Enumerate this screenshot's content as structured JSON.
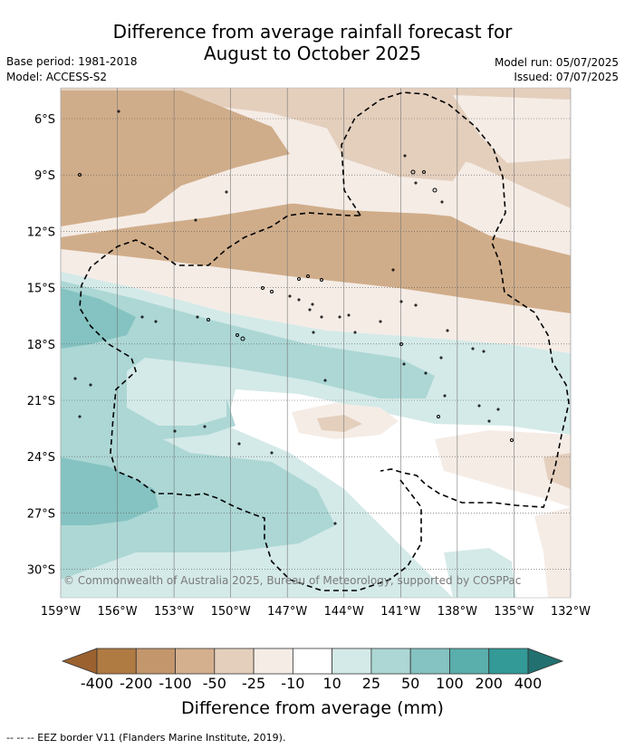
{
  "title": {
    "line1": "Difference from average rainfall forecast for",
    "line2": "August to October 2025"
  },
  "meta": {
    "base_period": "Base period: 1981-2018",
    "model": "Model: ACCESS-S2",
    "model_run": "Model run: 05/07/2025",
    "issued": "Issued: 07/07/2025"
  },
  "map": {
    "lat_labels": [
      "6°S",
      "9°S",
      "12°S",
      "15°S",
      "18°S",
      "21°S",
      "24°S",
      "27°S",
      "30°S"
    ],
    "lon_labels": [
      "159°W",
      "156°W",
      "153°W",
      "150°W",
      "147°W",
      "144°W",
      "141°W",
      "138°W",
      "135°W",
      "132°W"
    ],
    "copyright": "© Commonwealth of Australia 2025, Bureau of Meteorology, supported by COSPPac",
    "colors": {
      "brown_50_100": "#d0ad8a",
      "brown_25_50": "#e4cfbd",
      "brown_10_25": "#f5ece6",
      "neutral": "#ffffff",
      "teal_10_25": "#d4eae8",
      "teal_25_50": "#acd7d5",
      "teal_50_100": "#84c3c1"
    }
  },
  "colorbar": {
    "labels": [
      "-400",
      "-200",
      "-100",
      "-50",
      "-25",
      "-10",
      "10",
      "25",
      "50",
      "100",
      "200",
      "400"
    ],
    "colors": [
      "#9b6230",
      "#b07a43",
      "#c3966c",
      "#d4b08f",
      "#e4cfbd",
      "#f5ece6",
      "#ffffff",
      "#d4eae8",
      "#acd7d5",
      "#84c3c1",
      "#5aaeac",
      "#339a97",
      "#22706f"
    ],
    "title": "Difference from average (mm)"
  },
  "footnote": "--  --  -- EEZ border V11 (Flanders Marine Institute, 2019)."
}
